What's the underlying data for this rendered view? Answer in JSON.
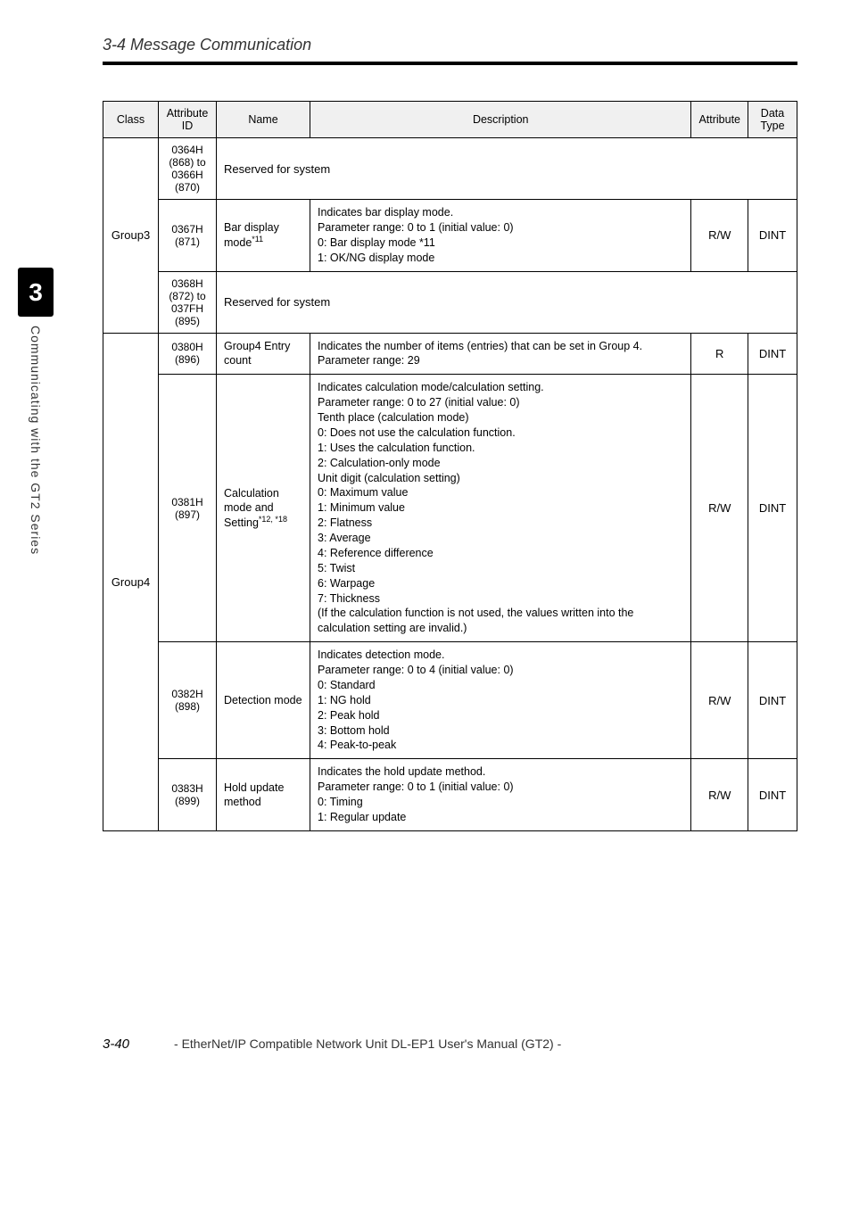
{
  "section_title": "3-4 Message Communication",
  "chapter_tab": "3",
  "side_label": "Communicating with the GT2 Series",
  "headers": {
    "class": "Class",
    "attrid": "Attribute ID",
    "name": "Name",
    "desc": "Description",
    "attr": "Attribute",
    "type": "Data Type"
  },
  "rows": {
    "g3_res1": {
      "attrid": "0364H (868) to 0366H (870)",
      "merged": "Reserved for system"
    },
    "g3_bar": {
      "attrid": "0367H (871)",
      "name_pre": "Bar display mode",
      "name_sup": "*11",
      "desc": "Indicates bar display mode.\nParameter range: 0 to 1 (initial value: 0)\n0: Bar display mode *11\n1: OK/NG display mode",
      "attr": "R/W",
      "type": "DINT"
    },
    "g3_res2": {
      "attrid": "0368H (872) to 037FH (895)",
      "merged": "Reserved for system"
    },
    "g3_class": "Group3",
    "g4_entry": {
      "attrid": "0380H (896)",
      "name": "Group4 Entry count",
      "desc": "Indicates the number of items (entries) that can be set in Group 4.\nParameter range: 29",
      "attr": "R",
      "type": "DINT"
    },
    "g4_calc": {
      "attrid": "0381H (897)",
      "name_pre": "Calculation mode and Setting",
      "name_sup": "*12, *18",
      "desc": "Indicates calculation mode/calculation setting.\nParameter range: 0 to 27 (initial value: 0)\nTenth place (calculation mode)\n0: Does not use the calculation function.\n1: Uses the calculation function.\n2: Calculation-only mode\nUnit digit (calculation setting)\n0: Maximum value\n1: Minimum value\n2: Flatness\n3: Average\n4: Reference difference\n5: Twist\n6: Warpage\n7: Thickness\n(If the calculation function is not used, the values written into the calculation setting are invalid.)",
      "attr": "R/W",
      "type": "DINT"
    },
    "g4_det": {
      "attrid": "0382H (898)",
      "name": "Detection mode",
      "desc": "Indicates detection mode.\nParameter range: 0 to 4 (initial value: 0)\n0: Standard\n1: NG hold\n2: Peak hold\n3: Bottom hold\n4: Peak-to-peak",
      "attr": "R/W",
      "type": "DINT"
    },
    "g4_hold": {
      "attrid": "0383H (899)",
      "name": "Hold update method",
      "desc": "Indicates the hold update method.\nParameter range: 0 to 1 (initial value: 0)\n0: Timing\n1: Regular update",
      "attr": "R/W",
      "type": "DINT"
    },
    "g4_class": "Group4"
  },
  "footer": {
    "page": "3-40",
    "title": "- EtherNet/IP Compatible Network Unit DL-EP1 User's Manual (GT2) -"
  }
}
